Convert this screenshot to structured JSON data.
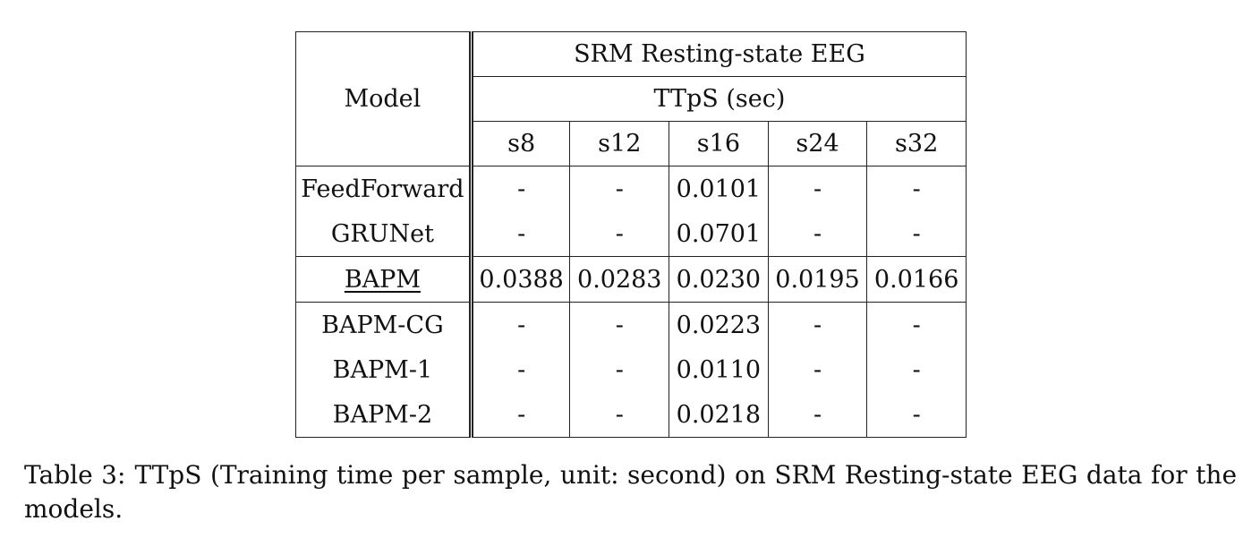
{
  "table": {
    "model_header": "Model",
    "dataset_header": "SRM Resting-state EEG",
    "metric_header": "TTpS (sec)",
    "columns": [
      "s8",
      "s12",
      "s16",
      "s24",
      "s32"
    ],
    "groups": [
      {
        "rows": [
          {
            "model": "FeedForward",
            "values": [
              "-",
              "-",
              "0.0101",
              "-",
              "-"
            ]
          },
          {
            "model": "GRUNet",
            "values": [
              "-",
              "-",
              "0.0701",
              "-",
              "-"
            ]
          }
        ]
      },
      {
        "rows": [
          {
            "model": "BAPM",
            "underline": true,
            "values": [
              "0.0388",
              "0.0283",
              "0.0230",
              "0.0195",
              "0.0166"
            ]
          }
        ]
      },
      {
        "rows": [
          {
            "model": "BAPM-CG",
            "values": [
              "-",
              "-",
              "0.0223",
              "-",
              "-"
            ]
          },
          {
            "model": "BAPM-1",
            "values": [
              "-",
              "-",
              "0.0110",
              "-",
              "-"
            ]
          },
          {
            "model": "BAPM-2",
            "values": [
              "-",
              "-",
              "0.0218",
              "-",
              "-"
            ]
          }
        ]
      }
    ]
  },
  "caption": {
    "label": "Table 3:",
    "text": "TTpS (Training time per sample, unit: second) on SRM Resting-state EEG data for the models."
  }
}
